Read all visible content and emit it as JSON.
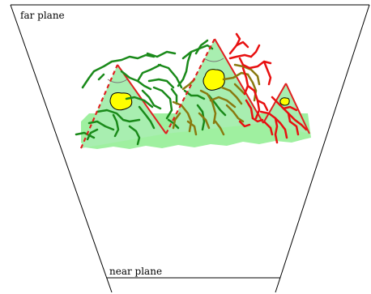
{
  "labels": {
    "far_plane": "far plane",
    "near_plane": "near plane"
  },
  "colors": {
    "frustum_line": "#000000",
    "ground_fill": "#9ff0a0",
    "triangle_fill": "#a8eeb0",
    "triangle_edge": "#e02020",
    "hidden_edge": "#e02020",
    "highlight": "#ffff00",
    "highlight_outline": "#000000",
    "branch_dark_green": "#1a8a1a",
    "branch_olive": "#8a7a10",
    "branch_red": "#e81010"
  },
  "legend": []
}
